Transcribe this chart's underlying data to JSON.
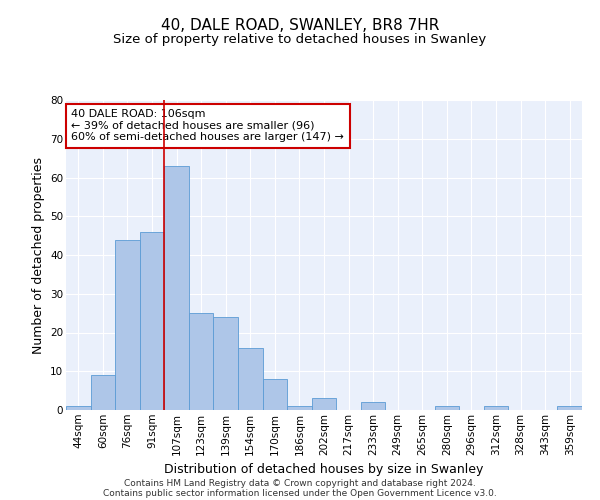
{
  "title1": "40, DALE ROAD, SWANLEY, BR8 7HR",
  "title2": "Size of property relative to detached houses in Swanley",
  "xlabel": "Distribution of detached houses by size in Swanley",
  "ylabel": "Number of detached properties",
  "categories": [
    "44sqm",
    "60sqm",
    "76sqm",
    "91sqm",
    "107sqm",
    "123sqm",
    "139sqm",
    "154sqm",
    "170sqm",
    "186sqm",
    "202sqm",
    "217sqm",
    "233sqm",
    "249sqm",
    "265sqm",
    "280sqm",
    "296sqm",
    "312sqm",
    "328sqm",
    "343sqm",
    "359sqm"
  ],
  "bar_heights": [
    1,
    9,
    44,
    46,
    63,
    25,
    24,
    16,
    8,
    1,
    3,
    0,
    2,
    0,
    0,
    1,
    0,
    1,
    0,
    0,
    1
  ],
  "bar_color": "#aec6e8",
  "bar_edge_color": "#5b9bd5",
  "vline_color": "#cc0000",
  "vline_xindex": 4,
  "annotation_line1": "40 DALE ROAD: 106sqm",
  "annotation_line2": "← 39% of detached houses are smaller (96)",
  "annotation_line3": "60% of semi-detached houses are larger (147) →",
  "annotation_box_color": "#ffffff",
  "annotation_box_edge": "#cc0000",
  "ylim": [
    0,
    80
  ],
  "yticks": [
    0,
    10,
    20,
    30,
    40,
    50,
    60,
    70,
    80
  ],
  "background_color": "#eaf0fb",
  "grid_color": "#ffffff",
  "footer1": "Contains HM Land Registry data © Crown copyright and database right 2024.",
  "footer2": "Contains public sector information licensed under the Open Government Licence v3.0.",
  "title1_fontsize": 11,
  "title2_fontsize": 9.5,
  "xlabel_fontsize": 9,
  "ylabel_fontsize": 9,
  "tick_fontsize": 7.5,
  "annotation_fontsize": 8,
  "footer_fontsize": 6.5
}
